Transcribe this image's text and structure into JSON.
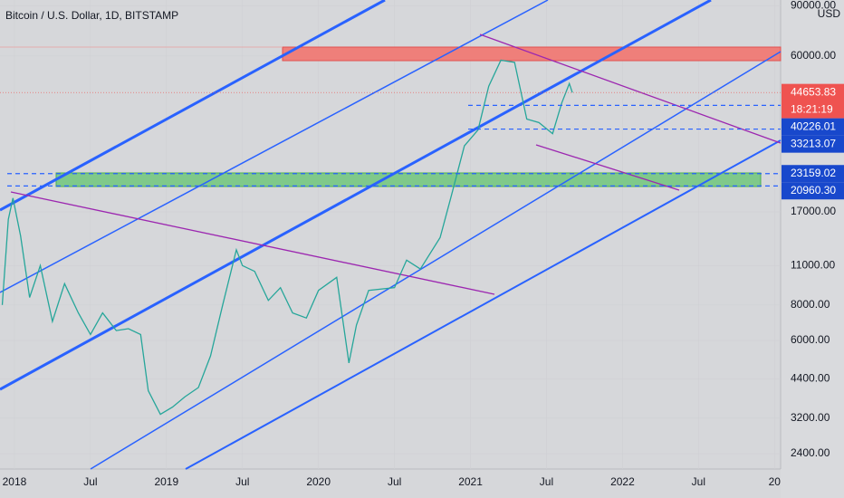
{
  "chart_data": {
    "type": "line",
    "title": "Bitcoin / U.S. Dollar, 1D, BITSTAMP",
    "currency": "USD",
    "log_scale_y": true,
    "color": "#26a69a",
    "x": [
      2017.92,
      2017.96,
      2017.99,
      2018.04,
      2018.1,
      2018.17,
      2018.25,
      2018.33,
      2018.42,
      2018.5,
      2018.58,
      2018.67,
      2018.75,
      2018.83,
      2018.88,
      2018.96,
      2019.04,
      2019.12,
      2019.21,
      2019.29,
      2019.37,
      2019.46,
      2019.5,
      2019.58,
      2019.67,
      2019.75,
      2019.83,
      2019.92,
      2020.0,
      2020.12,
      2020.2,
      2020.25,
      2020.33,
      2020.5,
      2020.58,
      2020.67,
      2020.8,
      2020.87,
      2020.96,
      2021.05,
      2021.12,
      2021.2,
      2021.29,
      2021.37,
      2021.45,
      2021.54,
      2021.6,
      2021.65,
      2021.67
    ],
    "values": [
      8000,
      16000,
      19000,
      14000,
      8500,
      11000,
      7000,
      9500,
      7500,
      6300,
      7500,
      6500,
      6600,
      6300,
      4000,
      3300,
      3500,
      3800,
      4100,
      5300,
      8000,
      12500,
      11000,
      10500,
      8300,
      9200,
      7500,
      7200,
      9000,
      10000,
      5000,
      6800,
      9000,
      9200,
      11500,
      10700,
      13800,
      19000,
      29000,
      33000,
      47000,
      58000,
      57000,
      36000,
      35000,
      32000,
      41000,
      48000,
      44653.83
    ],
    "xlim": [
      2017.905,
      2023.04
    ],
    "ylim": [
      2120,
      94400
    ],
    "xticks": [
      2018,
      {
        "value": 2018.5,
        "label": "Jul"
      },
      2019,
      {
        "value": 2019.5,
        "label": "Jul"
      },
      2020,
      {
        "value": 2020.5,
        "label": "Jul"
      },
      2021,
      {
        "value": 2021.5,
        "label": "Jul"
      },
      2022,
      {
        "value": 2022.5,
        "label": "Jul"
      },
      {
        "value": 2023,
        "label": "20"
      }
    ],
    "yticks": [
      {
        "value": 2400,
        "label": "2400.00"
      },
      {
        "value": 3200,
        "label": "3200.00"
      },
      {
        "value": 4400,
        "label": "4400.00"
      },
      {
        "value": 6000,
        "label": "6000.00"
      },
      {
        "value": 8000,
        "label": "8000.00"
      },
      {
        "value": 11000,
        "label": "11000.00"
      },
      {
        "value": 17000,
        "label": "17000.00"
      },
      {
        "value": 60000,
        "label": "60000.00"
      },
      {
        "value": 90000,
        "label": "90000.00"
      }
    ],
    "last_price": 44653.83,
    "countdown": "18:21:19",
    "levels": [
      40226.01,
      33213.07,
      23159.02,
      {
        "value": 20960.3,
        "label": "20960.30"
      }
    ]
  }
}
